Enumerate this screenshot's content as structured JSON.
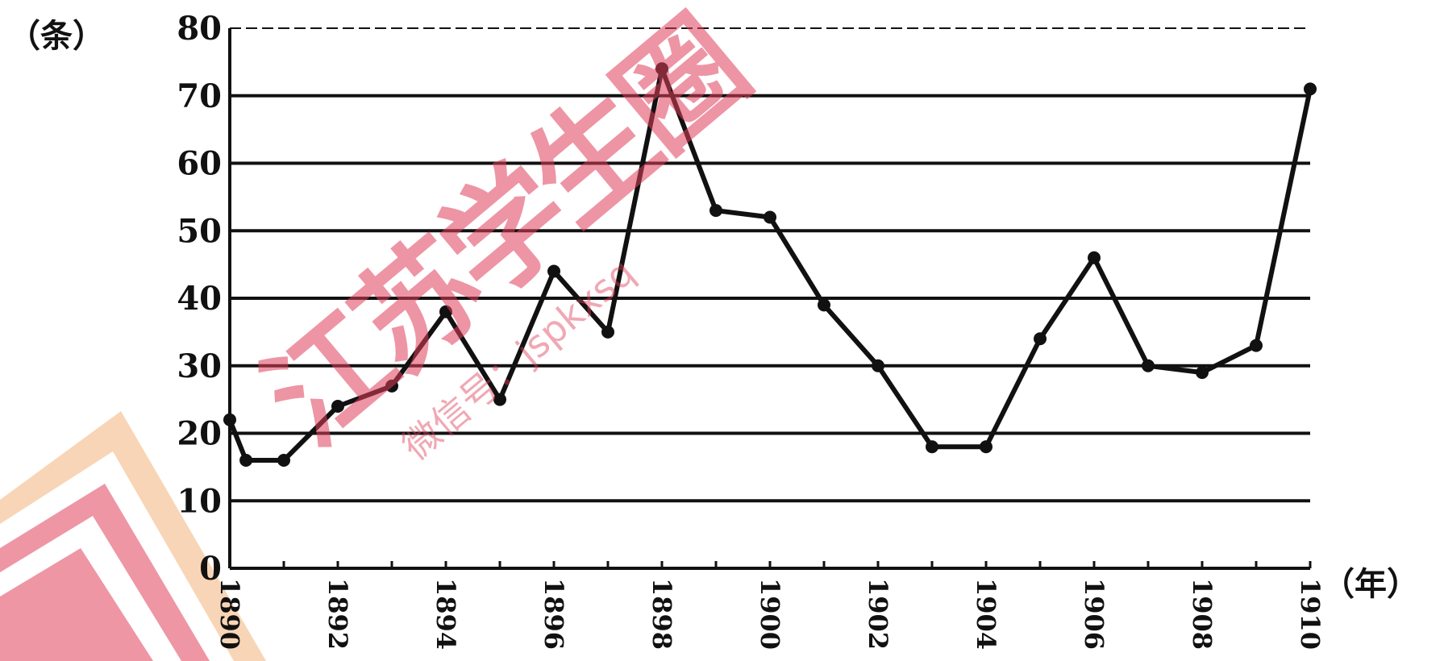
{
  "chart_data": {
    "type": "line",
    "y_unit_label": "（条）",
    "x_unit_label": "（年）",
    "ylim": [
      0,
      80
    ],
    "y_ticks": [
      "0",
      "10",
      "20",
      "30",
      "40",
      "50",
      "60",
      "70",
      "80"
    ],
    "x_tick_labels": [
      "1890",
      "1892",
      "1894",
      "1896",
      "1898",
      "1900",
      "1902",
      "1904",
      "1906",
      "1908",
      "1910"
    ],
    "x": [
      1890,
      1890.3,
      1891,
      1892,
      1893,
      1894,
      1895,
      1896,
      1897,
      1898,
      1899,
      1900,
      1901,
      1902,
      1903,
      1904,
      1905,
      1906,
      1907,
      1908,
      1909,
      1910
    ],
    "values": [
      22,
      16,
      16,
      24,
      27,
      38,
      25,
      44,
      35,
      74,
      53,
      52,
      39,
      30,
      18,
      18,
      34,
      46,
      30,
      29,
      33,
      71
    ],
    "grid": true,
    "line_color": "#111111",
    "grid_color": "#111111"
  },
  "watermark": {
    "text": "江苏学生圈",
    "sub_text": "微信号：jspkxsq",
    "color": "#e0405a",
    "logo_color": "#f3b27a"
  }
}
